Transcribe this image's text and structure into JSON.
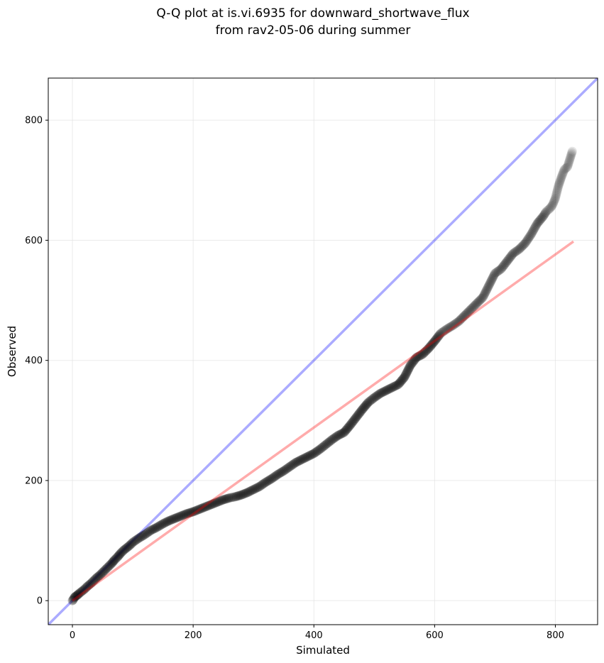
{
  "chart_data": {
    "type": "scatter",
    "title": [
      "Q-Q plot at is.vi.6935 for downward_shortwave_flux",
      "from rav2-05-06 during summer"
    ],
    "xlabel": "Simulated",
    "ylabel": "Observed",
    "xlim": [
      -40,
      870
    ],
    "ylim": [
      -40,
      870
    ],
    "xticks": [
      0,
      200,
      400,
      600,
      800
    ],
    "yticks": [
      0,
      200,
      400,
      600,
      800
    ],
    "grid": true,
    "colors": {
      "points": "#000000",
      "identity_line": "#0000ff",
      "fit_line": "#ff0000",
      "grid": "#dddddd"
    },
    "identity_line": {
      "x": [
        -40,
        870
      ],
      "y": [
        -40,
        870
      ]
    },
    "fit_line": {
      "x": [
        0,
        830
      ],
      "y": [
        0,
        598
      ]
    },
    "points": {
      "x": [
        0,
        1,
        2,
        3,
        5,
        8,
        10,
        15,
        20,
        25,
        30,
        35,
        40,
        45,
        50,
        55,
        60,
        65,
        70,
        75,
        80,
        85,
        90,
        95,
        100,
        110,
        120,
        130,
        140,
        150,
        160,
        170,
        180,
        190,
        200,
        210,
        220,
        230,
        240,
        250,
        260,
        270,
        280,
        290,
        300,
        310,
        320,
        330,
        340,
        350,
        360,
        370,
        380,
        390,
        400,
        410,
        420,
        430,
        440,
        450,
        460,
        470,
        480,
        490,
        500,
        510,
        520,
        530,
        540,
        550,
        560,
        570,
        580,
        590,
        600,
        610,
        620,
        630,
        640,
        650,
        660,
        670,
        680,
        690,
        700,
        710,
        720,
        730,
        740,
        750,
        760,
        770,
        780,
        785,
        790,
        795,
        800,
        805,
        810,
        815,
        820,
        828
      ],
      "y": [
        0,
        1,
        3,
        5,
        7,
        9,
        11,
        15,
        19,
        24,
        28,
        33,
        38,
        42,
        47,
        52,
        57,
        62,
        68,
        73,
        79,
        84,
        88,
        92,
        97,
        104,
        110,
        117,
        122,
        128,
        133,
        137,
        141,
        145,
        148,
        152,
        156,
        160,
        164,
        168,
        171,
        173,
        176,
        180,
        185,
        190,
        197,
        203,
        210,
        216,
        223,
        230,
        235,
        240,
        245,
        252,
        260,
        268,
        275,
        280,
        292,
        305,
        318,
        330,
        338,
        345,
        350,
        355,
        360,
        372,
        392,
        405,
        410,
        420,
        432,
        445,
        452,
        458,
        465,
        475,
        485,
        495,
        505,
        525,
        545,
        552,
        565,
        578,
        585,
        595,
        610,
        628,
        640,
        648,
        652,
        658,
        670,
        690,
        705,
        718,
        722,
        748
      ]
    }
  }
}
